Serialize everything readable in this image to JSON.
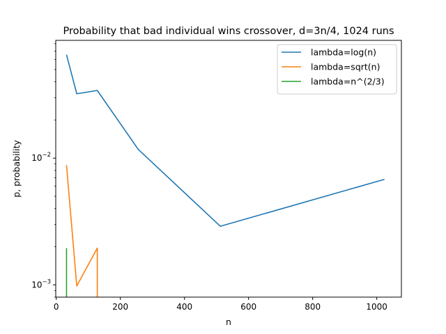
{
  "chart_data": {
    "type": "line",
    "title": "Probability that bad individual wins crossover, d=3n/4, 1024 runs",
    "xlabel": "n",
    "ylabel": "p, probability",
    "xlim": [
      -1.6,
      1076.8
    ],
    "ylim": [
      0.0008,
      0.085
    ],
    "yscale": "log",
    "xticks": [
      0,
      200,
      400,
      600,
      800,
      1000
    ],
    "xtick_labels": [
      "0",
      "200",
      "400",
      "600",
      "800",
      "1000"
    ],
    "yticks": [
      0.001,
      0.01
    ],
    "ytick_labels": [
      "10^-3",
      "10^-2"
    ],
    "ytick_label_parts": [
      {
        "base": "10",
        "exp": "−3"
      },
      {
        "base": "10",
        "exp": "−2"
      }
    ],
    "grid": false,
    "legend_position": "top-right",
    "series": [
      {
        "name": "lambda=log(n)",
        "color": "#1f77b4",
        "x": [
          32,
          64,
          128,
          256,
          512,
          1024
        ],
        "y": [
          0.0654,
          0.0322,
          0.0342,
          0.0117,
          0.0029,
          0.0068
        ]
      },
      {
        "name": "lambda=sqrt(n)",
        "color": "#ff7f0e",
        "x": [
          32,
          64,
          128,
          128
        ],
        "y": [
          0.0088,
          0.00098,
          0.00195,
          0.0008
        ]
      },
      {
        "name": "lambda=n^(2/3)",
        "color": "#2ca02c",
        "x": [
          32,
          32
        ],
        "y": [
          0.00195,
          0.0008
        ]
      }
    ]
  }
}
